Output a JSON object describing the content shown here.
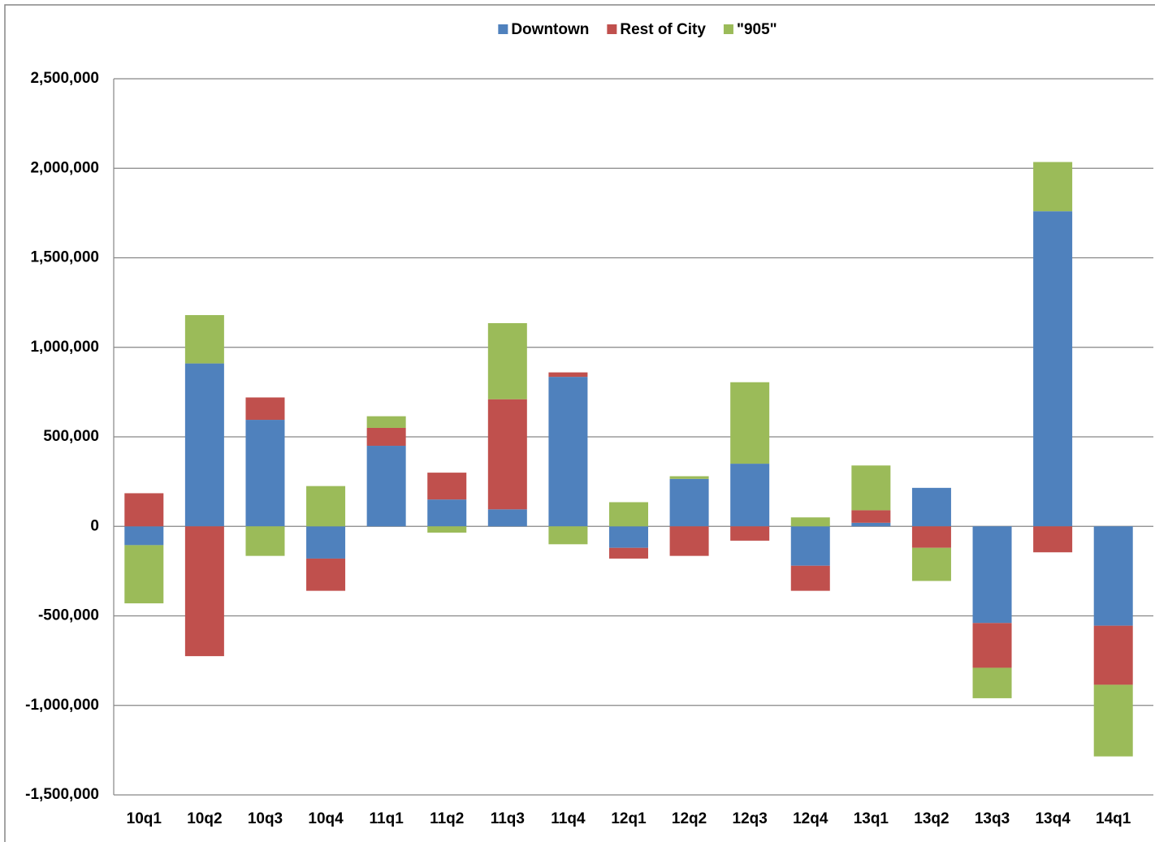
{
  "chart_data": {
    "type": "stacked-bar",
    "categories": [
      "10q1",
      "10q2",
      "10q3",
      "10q4",
      "11q1",
      "11q2",
      "11q3",
      "11q4",
      "12q1",
      "12q2",
      "12q3",
      "12q4",
      "13q1",
      "13q2",
      "13q3",
      "13q4",
      "14q1"
    ],
    "series": [
      {
        "name": "Downtown",
        "color": "#4f81bd",
        "values": [
          -105000,
          910000,
          595000,
          -180000,
          450000,
          150000,
          95000,
          835000,
          -120000,
          265000,
          350000,
          -220000,
          20000,
          215000,
          -540000,
          1760000,
          -555000
        ]
      },
      {
        "name": "Rest of City",
        "color": "#c0504d",
        "values": [
          185000,
          -725000,
          125000,
          -180000,
          100000,
          150000,
          615000,
          25000,
          -60000,
          -165000,
          -80000,
          -140000,
          70000,
          -120000,
          -250000,
          -145000,
          -330000
        ]
      },
      {
        "name": "\"905\"",
        "color": "#9bbb59",
        "values": [
          -325000,
          270000,
          -165000,
          225000,
          65000,
          -35000,
          425000,
          -100000,
          135000,
          15000,
          455000,
          50000,
          250000,
          -185000,
          -170000,
          275000,
          -400000
        ]
      }
    ],
    "ylim": [
      -1500000,
      2500000
    ],
    "yticks": [
      {
        "value": -1500000,
        "label": "-1,500,000"
      },
      {
        "value": -1000000,
        "label": "-1,000,000"
      },
      {
        "value": -500000,
        "label": "-500,000"
      },
      0,
      {
        "value": 500000,
        "label": "500,000"
      },
      {
        "value": 1000000,
        "label": "1,000,000"
      },
      {
        "value": 1500000,
        "label": "1,500,000"
      },
      {
        "value": 2000000,
        "label": "2,000,000"
      },
      {
        "value": 2500000,
        "label": "2,500,000"
      }
    ],
    "grid": true,
    "legend": "top"
  }
}
